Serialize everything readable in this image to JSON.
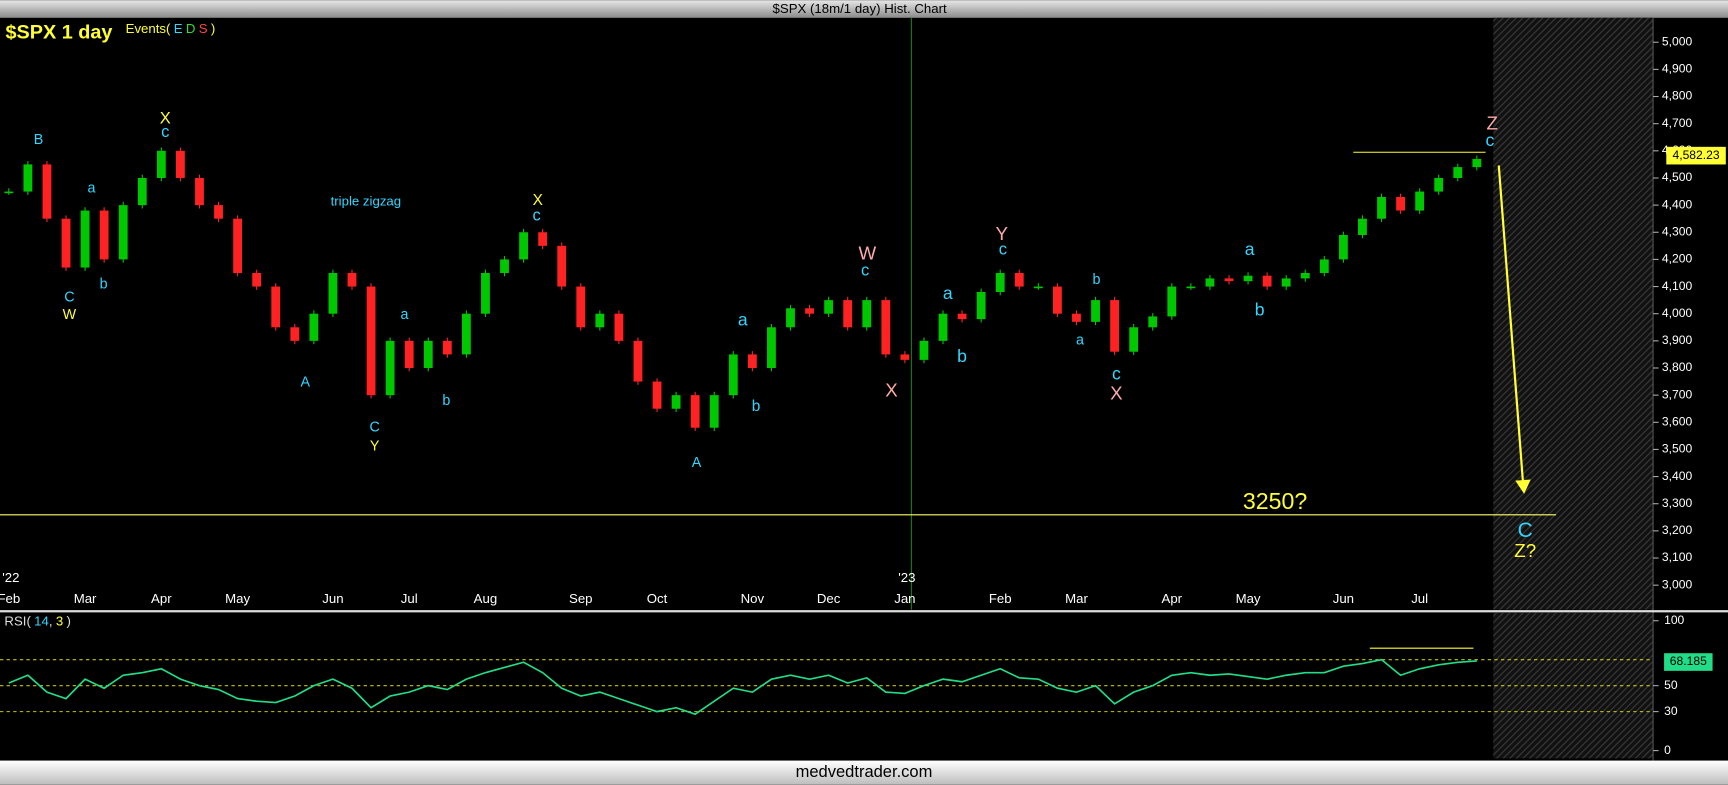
{
  "title": "$SPX (18m/1 day) Hist. Chart",
  "footer": "medvedtrader.com",
  "chart_data": [
    {
      "type": "candlestick",
      "title": "$SPX 1 day",
      "events": {
        "open": "Events(",
        "e": "E",
        "d": "D",
        "s": "S",
        "close": ")"
      },
      "categories": [
        "Feb",
        null,
        null,
        null,
        "Mar",
        null,
        null,
        null,
        "Apr",
        null,
        null,
        null,
        "May",
        null,
        null,
        null,
        null,
        "Jun",
        null,
        null,
        null,
        "Jul",
        null,
        null,
        null,
        "Aug",
        null,
        null,
        null,
        null,
        "Sep",
        null,
        null,
        null,
        "Oct",
        null,
        null,
        null,
        null,
        "Nov",
        null,
        null,
        null,
        "Dec",
        null,
        null,
        null,
        "Jan",
        null,
        null,
        null,
        null,
        "Feb",
        null,
        null,
        null,
        "Mar",
        null,
        null,
        null,
        null,
        "Apr",
        null,
        null,
        null,
        "May",
        null,
        null,
        null,
        null,
        "Jun",
        null,
        null,
        null,
        "Jul",
        null,
        null,
        null
      ],
      "year_labels": [
        "'22",
        "'23"
      ],
      "values": [
        4450,
        4550,
        4350,
        4170,
        4380,
        4200,
        4400,
        4500,
        4600,
        4500,
        4400,
        4350,
        4150,
        4100,
        3950,
        3900,
        4000,
        4150,
        4100,
        3700,
        3900,
        3800,
        3900,
        3850,
        4000,
        4150,
        4200,
        4300,
        4250,
        4100,
        3950,
        4000,
        3900,
        3750,
        3650,
        3700,
        3580,
        3700,
        3850,
        3800,
        3950,
        4020,
        4000,
        4050,
        3950,
        4050,
        3850,
        3830,
        3900,
        4000,
        3980,
        4080,
        4150,
        4100,
        4100,
        4000,
        3970,
        4050,
        3860,
        3950,
        3990,
        4100,
        4100,
        4130,
        4120,
        4140,
        4100,
        4130,
        4150,
        4200,
        4290,
        4350,
        4430,
        4380,
        4450,
        4500,
        4540,
        4570
      ],
      "up_color": "#00c800",
      "down_color": "#ff2222",
      "ylim": [
        2910,
        5090
      ],
      "yticks": [
        {
          "value": 5000,
          "label": "5,000"
        },
        {
          "value": 4900,
          "label": "4,900"
        },
        {
          "value": 4800,
          "label": "4,800"
        },
        {
          "value": 4700,
          "label": "4,700"
        },
        {
          "value": 4600,
          "label": "4,600"
        },
        {
          "value": 4500,
          "label": "4,500"
        },
        {
          "value": 4400,
          "label": "4,400"
        },
        {
          "value": 4300,
          "label": "4,300"
        },
        {
          "value": 4200,
          "label": "4,200"
        },
        {
          "value": 4100,
          "label": "4,100"
        },
        {
          "value": 4000,
          "label": "4,000"
        },
        {
          "value": 3900,
          "label": "3,900"
        },
        {
          "value": 3800,
          "label": "3,800"
        },
        {
          "value": 3700,
          "label": "3,700"
        },
        {
          "value": 3600,
          "label": "3,600"
        },
        {
          "value": 3500,
          "label": "3,500"
        },
        {
          "value": 3400,
          "label": "3,400"
        },
        {
          "value": 3300,
          "label": "3,300"
        },
        {
          "value": 3200,
          "label": "3,200"
        },
        {
          "value": 3100,
          "label": "3,100"
        },
        {
          "value": 3000,
          "label": "3,000"
        }
      ],
      "last_price": {
        "value": 4582.23,
        "label": "4,582.23"
      },
      "annotations": [
        {
          "text": "B",
          "color": "#33d6ff"
        },
        {
          "text": "a",
          "color": "#33d6ff"
        },
        {
          "text": "b",
          "color": "#33d6ff"
        },
        {
          "text": "C",
          "color": "#33d6ff"
        },
        {
          "text": "W",
          "color": "#ffff33"
        },
        {
          "text": "X",
          "color": "#ffff33"
        },
        {
          "text": "c",
          "color": "#33d6ff"
        },
        {
          "text": "triple zigzag",
          "color": "#33d6ff"
        },
        {
          "text": "A",
          "color": "#33d6ff"
        },
        {
          "text": "a",
          "color": "#33d6ff"
        },
        {
          "text": "C",
          "color": "#33d6ff"
        },
        {
          "text": "Y",
          "color": "#ffff33"
        },
        {
          "text": "b",
          "color": "#33d6ff"
        },
        {
          "text": "X",
          "color": "#ffff33"
        },
        {
          "text": "c",
          "color": "#33d6ff"
        },
        {
          "text": "b",
          "color": "#33d6ff"
        },
        {
          "text": "a",
          "color": "#33d6ff"
        },
        {
          "text": "A",
          "color": "#33d6ff"
        },
        {
          "text": "W",
          "color": "#ffaaaa"
        },
        {
          "text": "c",
          "color": "#33d6ff"
        },
        {
          "text": "X",
          "color": "#ffaaaa"
        },
        {
          "text": "a",
          "color": "#33d6ff"
        },
        {
          "text": "b",
          "color": "#33d6ff"
        },
        {
          "text": "Y",
          "color": "#ffaaaa"
        },
        {
          "text": "c",
          "color": "#33d6ff"
        },
        {
          "text": "b",
          "color": "#33d6ff"
        },
        {
          "text": "a",
          "color": "#33d6ff"
        },
        {
          "text": "c",
          "color": "#33d6ff"
        },
        {
          "text": "X",
          "color": "#ffaaaa"
        },
        {
          "text": "a",
          "color": "#33d6ff"
        },
        {
          "text": "b",
          "color": "#33d6ff"
        },
        {
          "text": "Z",
          "color": "#ffaaaa"
        },
        {
          "text": "c",
          "color": "#33d6ff"
        },
        {
          "text": "3250?",
          "color": "#ffff33"
        },
        {
          "text": "C",
          "color": "#33d6ff"
        },
        {
          "text": "Z?",
          "color": "#ffff33"
        }
      ]
    },
    {
      "type": "line",
      "legend": {
        "open": "RSI(",
        "params": [
          14,
          3
        ],
        "close": ")"
      },
      "values": [
        52,
        58,
        45,
        40,
        55,
        48,
        58,
        60,
        63,
        55,
        50,
        47,
        40,
        38,
        37,
        42,
        50,
        55,
        48,
        33,
        42,
        45,
        50,
        47,
        55,
        60,
        64,
        68,
        60,
        48,
        42,
        45,
        40,
        35,
        30,
        33,
        28,
        38,
        48,
        45,
        55,
        58,
        55,
        58,
        52,
        56,
        45,
        44,
        50,
        55,
        53,
        58,
        63,
        56,
        55,
        48,
        45,
        50,
        36,
        45,
        50,
        58,
        60,
        58,
        59,
        57,
        55,
        58,
        60,
        60,
        65,
        67,
        70,
        58,
        63,
        66,
        68,
        69
      ],
      "color": "#22dd88",
      "ylim": [
        -6,
        106
      ],
      "yticks": [
        100,
        50,
        30,
        0
      ],
      "levels": [
        70,
        50,
        30
      ],
      "last_value": 68.185
    }
  ]
}
